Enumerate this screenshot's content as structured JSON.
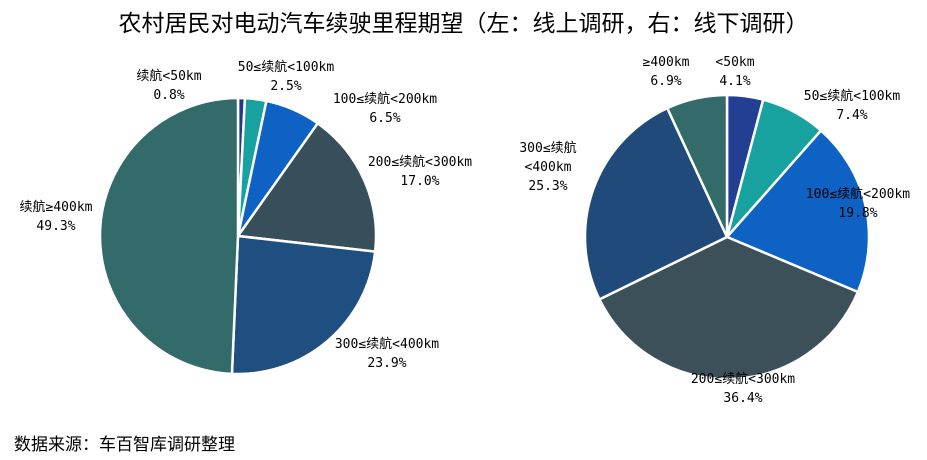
{
  "title": "农村居民对电动汽车续驶里程期望（左：线上调研，右：线下调研）",
  "source": "数据来源：车百智库调研整理",
  "chart_data": [
    {
      "type": "pie",
      "title": "",
      "categories": [
        "续航<50km",
        "50≤续航<100km",
        "100≤续航<200km",
        "200≤续航<300km",
        "300≤续航<400km",
        "续航≥400km"
      ],
      "values": [
        0.8,
        2.5,
        6.5,
        17.0,
        23.9,
        49.3
      ],
      "value_labels": [
        "0.8%",
        "2.5%",
        "6.5%",
        "17.0%",
        "23.9%",
        "49.3%"
      ],
      "colors": [
        "#1f3a8a",
        "#17a2a0",
        "#0e62c4",
        "#374f5a",
        "#1f4e80",
        "#336b6b"
      ]
    },
    {
      "type": "pie",
      "title": "",
      "categories": [
        "<50km",
        "50≤续航<100km",
        "100≤续航<200km",
        "200≤续航<300km",
        "300≤续航<400km",
        "≥400km"
      ],
      "category_lines": [
        [
          "<50km"
        ],
        [
          "50≤续航<100km"
        ],
        [
          "100≤续航<200km"
        ],
        [
          "200≤续航<300km"
        ],
        [
          "300≤续航",
          "<400km"
        ],
        [
          "≥400km"
        ]
      ],
      "values": [
        4.1,
        7.4,
        19.8,
        36.4,
        25.3,
        6.9
      ],
      "value_labels": [
        "4.1%",
        "7.4%",
        "19.8%",
        "36.4%",
        "25.3%",
        "6.9%"
      ],
      "colors": [
        "#233f94",
        "#17a2a0",
        "#0e62c4",
        "#3b5058",
        "#1f4a7a",
        "#336b6b"
      ]
    }
  ]
}
